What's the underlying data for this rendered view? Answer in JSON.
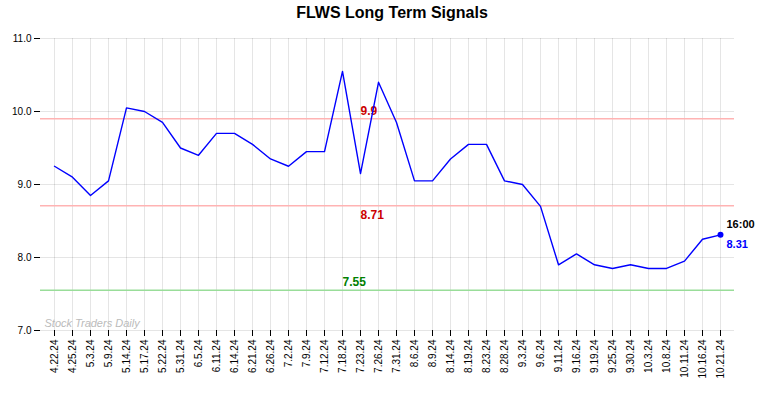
{
  "chart_data": {
    "type": "line",
    "title": "FLWS Long Term Signals",
    "categories": [
      "4.22.24",
      "4.25.24",
      "5.3.24",
      "5.9.24",
      "5.14.24",
      "5.17.24",
      "5.22.24",
      "5.31.24",
      "6.5.24",
      "6.11.24",
      "6.14.24",
      "6.21.24",
      "6.26.24",
      "7.2.24",
      "7.9.24",
      "7.12.24",
      "7.18.24",
      "7.23.24",
      "7.26.24",
      "7.31.24",
      "8.6.24",
      "8.9.24",
      "8.14.24",
      "8.19.24",
      "8.23.24",
      "8.28.24",
      "9.3.24",
      "9.6.24",
      "9.11.24",
      "9.16.24",
      "9.19.24",
      "9.25.24",
      "9.30.24",
      "10.3.24",
      "10.8.24",
      "10.11.24",
      "10.16.24",
      "10.21.24"
    ],
    "values": [
      9.25,
      9.1,
      8.85,
      9.05,
      10.05,
      10.0,
      9.85,
      9.5,
      9.4,
      9.7,
      9.7,
      9.55,
      9.35,
      9.25,
      9.45,
      9.45,
      10.55,
      9.15,
      10.4,
      9.85,
      9.05,
      9.05,
      9.35,
      9.55,
      9.55,
      9.05,
      9.0,
      8.7,
      7.9,
      8.05,
      7.9,
      7.85,
      7.9,
      7.85,
      7.85,
      7.95,
      8.25,
      8.31
    ],
    "color": "blue",
    "ylim": [
      7,
      11
    ],
    "yticks": [
      7,
      8,
      9,
      10,
      11
    ],
    "grid": true,
    "reference_lines": [
      {
        "value": 9.9,
        "color": "#ffb3b3",
        "label": "9.9",
        "label_color": "#cc0000"
      },
      {
        "value": 8.71,
        "color": "#ffb3b3",
        "label": "8.71",
        "label_color": "#cc0000"
      },
      {
        "value": 7.55,
        "color": "#99dd99",
        "label": "7.55",
        "label_color": "green"
      }
    ],
    "end_labels": [
      {
        "text": "16:00",
        "color": "black"
      },
      {
        "text": "8.31",
        "color": "blue"
      }
    ],
    "watermark": {
      "text": "Stock Traders Daily",
      "color": "#bbbbbb"
    }
  }
}
